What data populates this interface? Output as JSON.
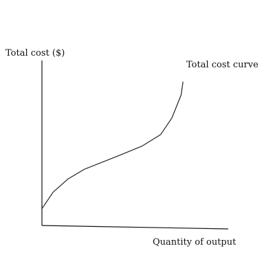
{
  "chart_data": {
    "type": "line",
    "title": "",
    "ylabel": "Total cost ($)",
    "xlabel": "Quantity of output",
    "curve_label": "Total cost curve",
    "series": [
      {
        "name": "Total cost curve",
        "x": [
          0,
          0.06,
          0.14,
          0.23,
          0.41,
          0.54,
          0.64,
          0.7,
          0.75,
          0.76
        ],
        "y": [
          0.11,
          0.21,
          0.29,
          0.35,
          0.43,
          0.49,
          0.56,
          0.66,
          0.8,
          0.88
        ]
      }
    ],
    "xlim": [
      0,
      1
    ],
    "ylim": [
      0,
      1
    ],
    "grid": false,
    "colors": {
      "axis": "#111111",
      "curve": "#222222",
      "text": "#111111"
    }
  }
}
